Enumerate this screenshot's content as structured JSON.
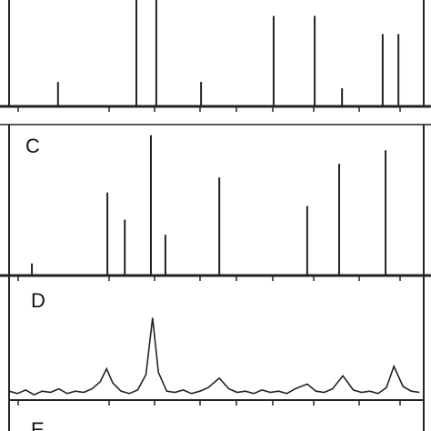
{
  "chart_data": [
    {
      "type": "stick",
      "x": [
        11.8,
        30.7,
        35.5,
        46.3,
        63.8,
        73.7,
        80.3,
        90.1,
        93.9
      ],
      "values": [
        23,
        100,
        100,
        23,
        85,
        85,
        17,
        68,
        68
      ],
      "xlim": [
        0,
        100
      ],
      "ylim": [
        0,
        100
      ]
    },
    {
      "type": "stick",
      "title": "C",
      "x": [
        5.5,
        23.7,
        27.9,
        34.2,
        37.7,
        50.7,
        71.9,
        79.6,
        90.8
      ],
      "values": [
        8,
        55,
        37,
        93,
        27,
        65,
        46,
        74,
        83
      ],
      "xlim": [
        0,
        100
      ],
      "ylim": [
        0,
        100
      ]
    },
    {
      "type": "line",
      "title": "D",
      "x": [
        0,
        2,
        4,
        6,
        8,
        10,
        12,
        14,
        16,
        18,
        20,
        22,
        23.5,
        25,
        27,
        29,
        31,
        33,
        34.6,
        36,
        38,
        40,
        42,
        44,
        46,
        48,
        50.7,
        53,
        55,
        57,
        59,
        61,
        63,
        65,
        67,
        69,
        71.9,
        74,
        76,
        78,
        80.5,
        83,
        85,
        87,
        89,
        91,
        92.8,
        95,
        97,
        99
      ],
      "values": [
        6,
        4,
        7,
        3,
        6,
        5,
        8,
        4,
        6,
        5,
        8,
        14,
        25,
        13,
        6,
        4,
        7,
        20,
        68,
        22,
        6,
        5,
        7,
        4,
        6,
        9,
        17,
        8,
        5,
        6,
        4,
        7,
        5,
        6,
        4,
        8,
        12,
        6,
        5,
        8,
        19,
        7,
        5,
        6,
        4,
        9,
        27,
        10,
        6,
        5
      ],
      "xlim": [
        0,
        100
      ],
      "ylim": [
        0,
        100
      ]
    },
    {
      "type": "empty",
      "title": "E"
    }
  ]
}
